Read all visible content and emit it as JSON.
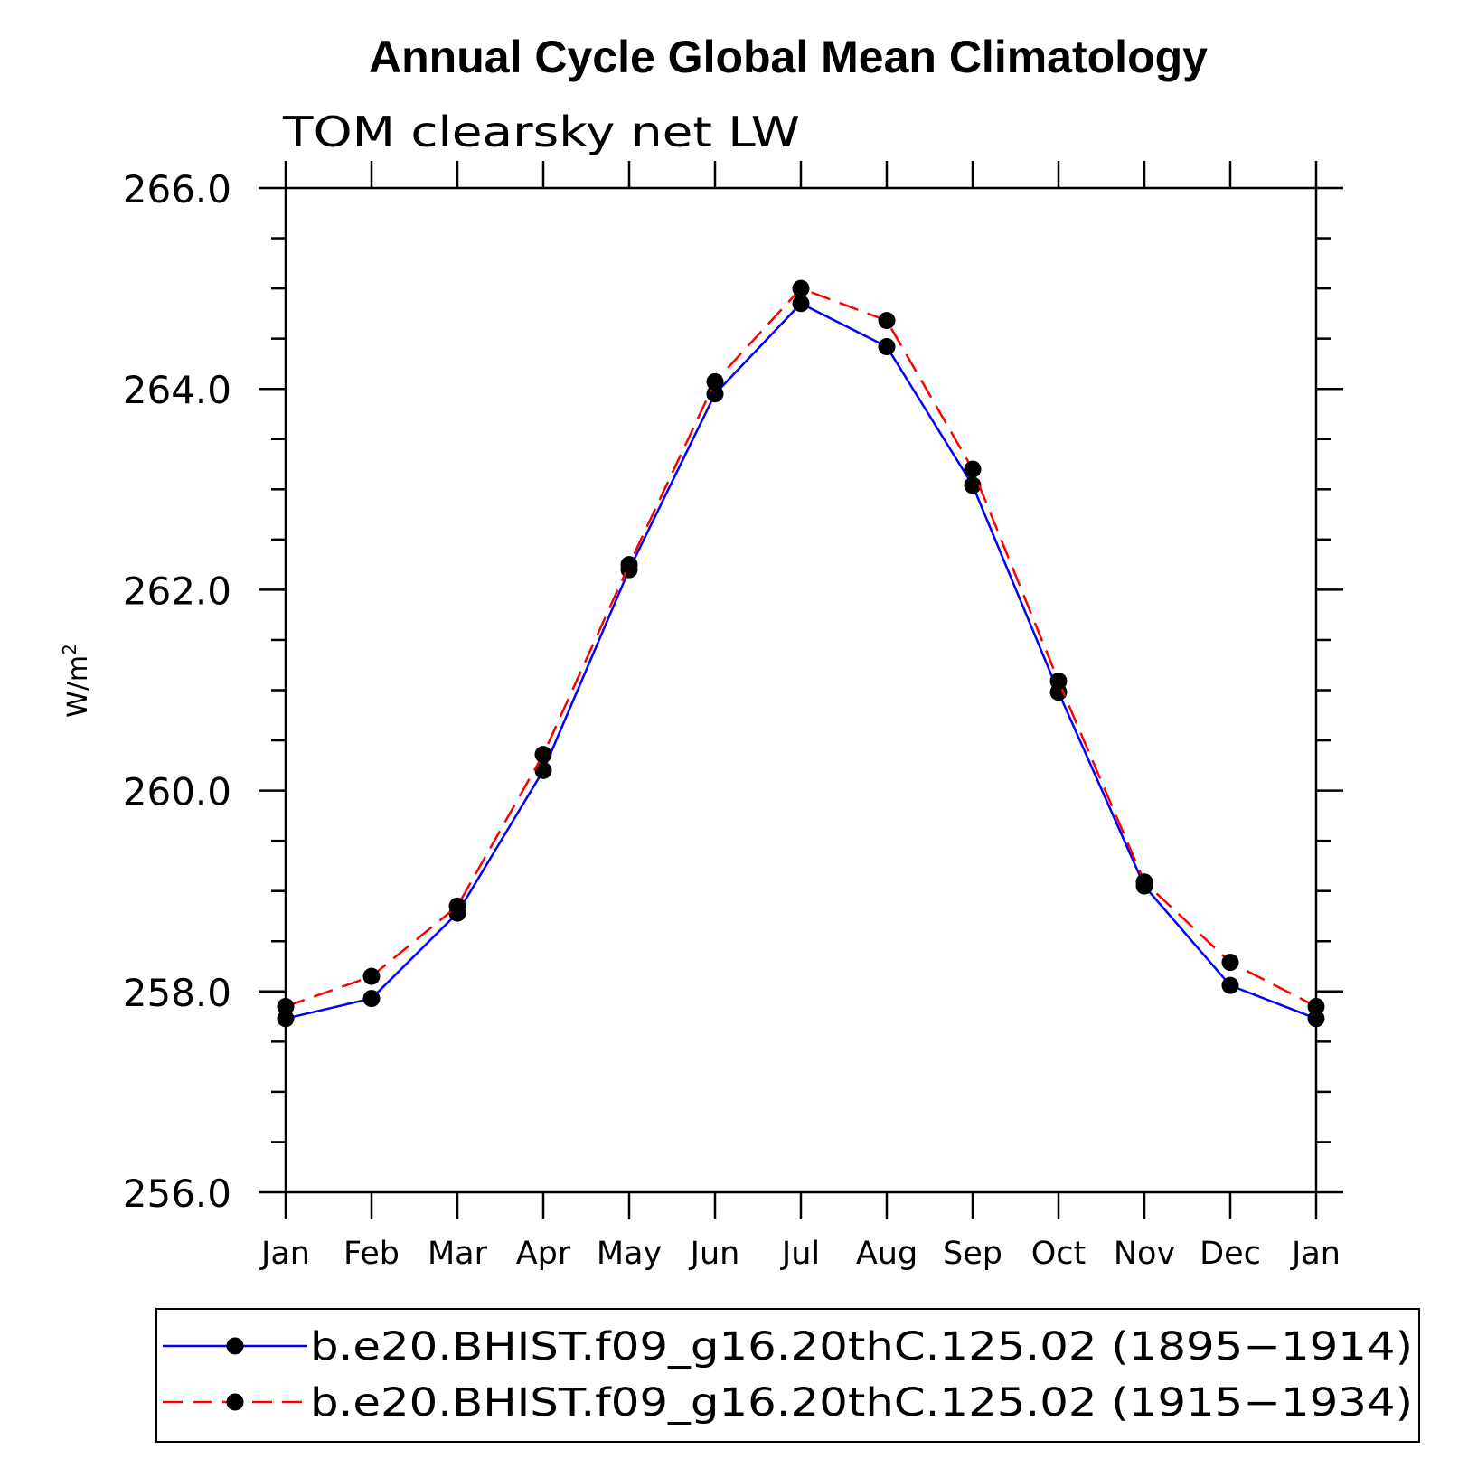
{
  "chart_data": {
    "type": "line",
    "title": "Annual Cycle Global Mean Climatology",
    "subtitle": "TOM clearsky net LW",
    "xlabel": "",
    "ylabel": "W/m",
    "ylabel_superscript": "2",
    "categories": [
      "Jan",
      "Feb",
      "Mar",
      "Apr",
      "May",
      "Jun",
      "Jul",
      "Aug",
      "Sep",
      "Oct",
      "Nov",
      "Dec",
      "Jan"
    ],
    "ylim": [
      256.0,
      266.0
    ],
    "yticks": [
      256.0,
      258.0,
      260.0,
      262.0,
      264.0,
      266.0
    ],
    "ytick_labels": [
      "256.0",
      "258.0",
      "260.0",
      "262.0",
      "264.0",
      "266.0"
    ],
    "series": [
      {
        "name": "b.e20.BHIST.f09_g16.20thC.125.02 (1895−1914)",
        "color": "#0000ff",
        "line_style": "solid",
        "marker": "circle",
        "values": [
          257.73,
          257.93,
          258.78,
          260.2,
          262.2,
          263.95,
          264.85,
          264.42,
          263.04,
          260.98,
          259.05,
          258.06,
          257.73
        ]
      },
      {
        "name": "b.e20.BHIST.f09_g16.20thC.125.02 (1915−1934)",
        "color": "#ff0000",
        "line_style": "dashed",
        "marker": "circle",
        "values": [
          257.85,
          258.15,
          258.85,
          260.36,
          262.25,
          264.07,
          265.0,
          264.68,
          263.2,
          261.09,
          259.09,
          258.29,
          257.85
        ]
      }
    ],
    "legend_position": "bottom"
  }
}
